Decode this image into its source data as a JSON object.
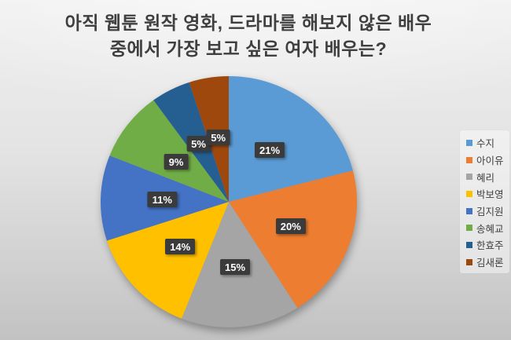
{
  "chart_data": {
    "type": "pie",
    "title": "아직 웹툰 원작 영화, 드라마를 해보지 않은 배우 중에서 가장 보고 싶은 여자 배우는?",
    "title_lines": [
      "아직 웹툰 원작 영화, 드라마를 해보지 않은 배우",
      "중에서 가장 보고 싶은 여자 배우는?"
    ],
    "categories": [
      "수지",
      "아이유",
      "혜리",
      "박보영",
      "김지원",
      "송혜교",
      "한효주",
      "김새론"
    ],
    "slugs": [
      "suzy",
      "iu",
      "hyeri",
      "park-bo-young",
      "kim-ji-won",
      "song-hye-kyo",
      "han-hyo-joo",
      "kim-sae-ron"
    ],
    "values": [
      21,
      20,
      15,
      14,
      11,
      9,
      5,
      5
    ],
    "labels": [
      "21%",
      "20%",
      "15%",
      "14%",
      "11%",
      "9%",
      "5%",
      "5%"
    ],
    "colors": [
      "#5B9BD5",
      "#ED7D31",
      "#A5A5A5",
      "#FFC000",
      "#4472C4",
      "#70AD47",
      "#255E91",
      "#9E480E"
    ],
    "legend_position": "right",
    "start_angle_deg": 0,
    "direction": "clockwise",
    "data_label_bg": "#3B3B3B",
    "data_label_color": "#FFFFFF",
    "title_color": "#3F3F3F"
  }
}
